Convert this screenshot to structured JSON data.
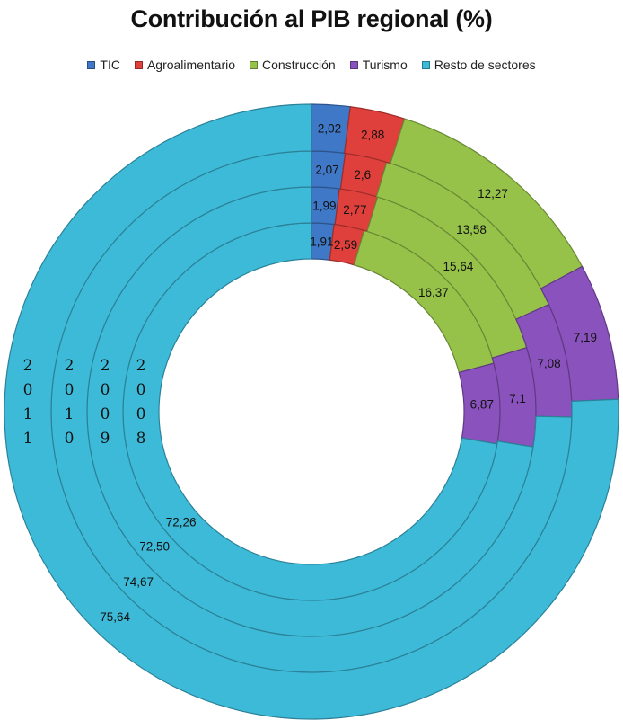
{
  "chart_data": {
    "type": "donut",
    "title": "Contribución al PIB regional (%)",
    "legend_position": "top",
    "categories": [
      "TIC",
      "Agroalimentario",
      "Construcción",
      "Turismo",
      "Resto de sectores"
    ],
    "colors": [
      "#3f78c6",
      "#e0403c",
      "#96c24a",
      "#8a52bd",
      "#3ebad9"
    ],
    "rings": [
      {
        "year": "2008",
        "values": [
          1.91,
          2.59,
          16.37,
          6.87,
          72.26
        ],
        "labels": [
          "1,91",
          "2,59",
          "16,37",
          "6,87",
          "72,26"
        ]
      },
      {
        "year": "2009",
        "values": [
          1.99,
          2.77,
          15.64,
          7.1,
          72.5
        ],
        "labels": [
          "1,99",
          "2,77",
          "15,64",
          "7,1",
          "72,50"
        ]
      },
      {
        "year": "2010",
        "values": [
          2.07,
          2.6,
          13.58,
          7.08,
          74.67
        ],
        "labels": [
          "2,07",
          "2,6",
          "13,58",
          "7,08",
          "74,67"
        ]
      },
      {
        "year": "2011",
        "values": [
          2.02,
          2.88,
          12.27,
          7.19,
          75.64
        ],
        "labels": [
          "2,02",
          "2,88",
          "12,27",
          "7,19",
          "75,64"
        ]
      }
    ]
  }
}
